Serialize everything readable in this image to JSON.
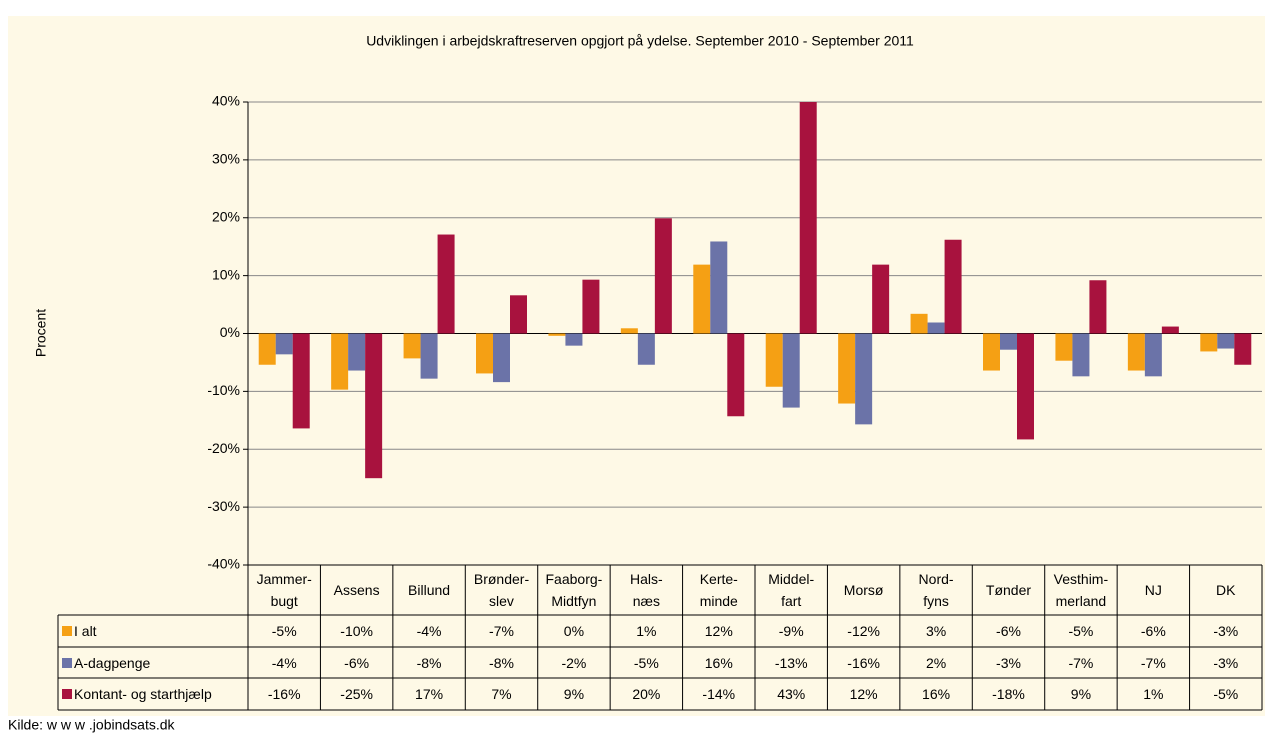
{
  "chart_data": {
    "type": "bar",
    "title": "Udviklingen i arbejdskraftreserven opgjort på ydelse. September 2010 - September 2011",
    "y_label": "Procent",
    "source": "Kilde: w w w .jobindsats.dk",
    "categories": [
      "Jammer-\nbugt",
      "Assens",
      "Billund",
      "Brønder-\nslev",
      "Faaborg-\nMidtfyn",
      "Hals-\nnæs",
      "Kerte-\nminde",
      "Middel-\nfart",
      "Morsø",
      "Nord-\nfyns",
      "Tønder",
      "Vesthim-\nmerland",
      "NJ",
      "DK"
    ],
    "series": [
      {
        "name": "I alt",
        "color": "#f5a014",
        "values": [
          -5.4,
          -9.7,
          -4.3,
          -6.9,
          -0.4,
          0.9,
          11.9,
          -9.2,
          -12.1,
          3.4,
          -6.4,
          -4.7,
          -6.4,
          -3.1
        ],
        "value_labels": [
          "-5%",
          "-10%",
          "-4%",
          "-7%",
          "0%",
          "1%",
          "12%",
          "-9%",
          "-12%",
          "3%",
          "-6%",
          "-5%",
          "-6%",
          "-3%"
        ]
      },
      {
        "name": "A-dagpenge",
        "color": "#6b73a8",
        "values": [
          -3.6,
          -6.4,
          -7.8,
          -8.4,
          -2.1,
          -5.4,
          15.9,
          -12.8,
          -15.7,
          1.9,
          -2.8,
          -7.4,
          -7.4,
          -2.6
        ],
        "value_labels": [
          "-4%",
          "-6%",
          "-8%",
          "-8%",
          "-2%",
          "-5%",
          "16%",
          "-13%",
          "-16%",
          "2%",
          "-3%",
          "-7%",
          "-7%",
          "-3%"
        ]
      },
      {
        "name": "Kontant- og starthjælp",
        "color": "#a8123e",
        "values": [
          -16.4,
          -25.0,
          17.1,
          6.6,
          9.3,
          19.9,
          -14.3,
          43,
          11.9,
          16.2,
          -18.3,
          9.2,
          1.2,
          -5.4
        ],
        "value_labels": [
          "-16%",
          "-25%",
          "17%",
          "7%",
          "9%",
          "20%",
          "-14%",
          "43%",
          "12%",
          "16%",
          "-18%",
          "9%",
          "1%",
          "-5%"
        ]
      }
    ],
    "ylim": [
      -40,
      40
    ],
    "yticks": [
      {
        "value": -40,
        "label": "-40%"
      },
      {
        "value": -30,
        "label": "-30%"
      },
      {
        "value": -20,
        "label": "-20%"
      },
      {
        "value": -10,
        "label": "-10%"
      },
      {
        "value": 0,
        "label": "0%"
      },
      {
        "value": 10,
        "label": "10%"
      },
      {
        "value": 20,
        "label": "20%"
      },
      {
        "value": 30,
        "label": "30%"
      },
      {
        "value": 40,
        "label": "40%"
      }
    ],
    "grid": true
  }
}
